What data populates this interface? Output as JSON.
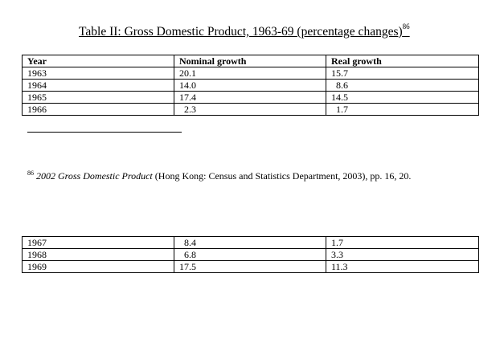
{
  "title": {
    "text": "Table II: Gross Domestic Product, 1963-69 (percentage changes)",
    "note_mark": "86"
  },
  "columns": [
    "Year",
    "Nominal growth",
    "Real growth"
  ],
  "rows_top": [
    [
      "1963",
      "20.1",
      "15.7"
    ],
    [
      "1964",
      "14.0",
      "8.6"
    ],
    [
      "1965",
      "17.4",
      "14.5"
    ],
    [
      "1966",
      "2.3",
      "1.7"
    ]
  ],
  "rows_bottom": [
    [
      "1967",
      "8.4",
      "1.7"
    ],
    [
      "1968",
      "6.8",
      "3.3"
    ],
    [
      "1969",
      "17.5",
      "11.3"
    ]
  ],
  "footnote": {
    "mark": "86",
    "work": "2002 Gross Domestic Product",
    "details": " (Hong Kong: Census and Statistics Department, 2003), pp. 16, 20."
  }
}
